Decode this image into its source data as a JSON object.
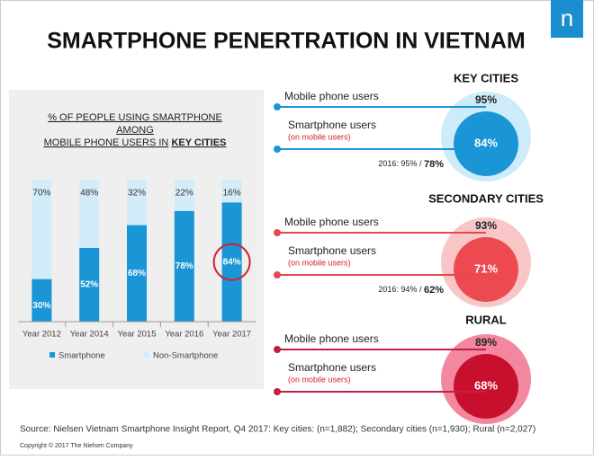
{
  "title": "SMARTPHONE PENERTRATION IN VIETNAM",
  "logo": "n",
  "chart_data": {
    "type": "bar",
    "stacked": true,
    "title": [
      "% OF PEOPLE USING SMARTPHONE",
      "AMONG",
      "MOBILE PHONE USERS IN",
      "KEY CITIES"
    ],
    "categories": [
      "Year 2012",
      "Year 2014",
      "Year 2015",
      "Year 2016",
      "Year 2017"
    ],
    "series": [
      {
        "name": "Smartphone",
        "color": "#1a95d6",
        "values": [
          30,
          52,
          68,
          78,
          84
        ],
        "value_labels": [
          "30%",
          "52%",
          "68%",
          "78%",
          "84%"
        ]
      },
      {
        "name": "Non-Smartphone",
        "color": "#d3ecf9",
        "values": [
          70,
          48,
          32,
          22,
          16
        ],
        "value_labels": [
          "70%",
          "48%",
          "32%",
          "22%",
          "16%"
        ]
      }
    ],
    "ylim": [
      0,
      100
    ],
    "legend": "bottom"
  },
  "panels": [
    {
      "title": "KEY CITIES",
      "mobile_label": "Mobile phone users",
      "mobile_value": "95%",
      "smart_label": "Smartphone users",
      "smart_sub": "(on mobile users)",
      "smart_value": "84%",
      "note": "2016: 95% /",
      "note_value": "78%"
    },
    {
      "title": "SECONDARY CITIES",
      "mobile_label": "Mobile phone users",
      "mobile_value": "93%",
      "smart_label": "Smartphone users",
      "smart_sub": "(on mobile users)",
      "smart_value": "71%",
      "note": "2016: 94% /",
      "note_value": "62%"
    },
    {
      "title": "RURAL",
      "mobile_label": "Mobile phone users",
      "mobile_value": "89%",
      "smart_label": "Smartphone users",
      "smart_sub": "(on mobile users)",
      "smart_value": "68%"
    }
  ],
  "source": "Source: Nielsen Vietnam Smartphone Insight Report, Q4 2017: Key cities:  (n=1,882); Secondary cities (n=1,930); Rural (n=2,027)",
  "copyright": "Copyright © 2017 The Nielsen Company"
}
